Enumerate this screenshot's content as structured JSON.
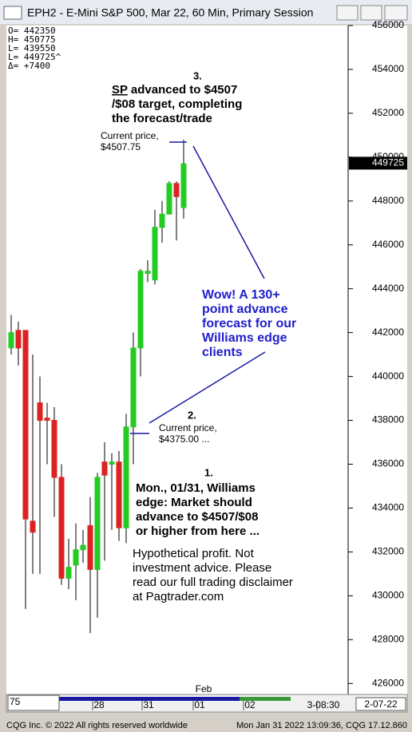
{
  "window": {
    "title": "EPH2 - E-Mini S&P 500, Mar 22, 60 Min, Primary Session",
    "footer_left": "CQG Inc. © 2022 All rights reserved worldwide",
    "footer_right": "Mon Jan 31 2022 13:09:36, CQG 17.12.860",
    "header_stats": [
      "O=  442350",
      "H=  450775",
      "L=  439550",
      "L=  449725^",
      "Δ=    +7400"
    ],
    "zoom": "75",
    "x_axis_labels": [
      "28",
      "31",
      "01",
      "02",
      "3-08:30"
    ],
    "month_label": "Feb",
    "date_box": "2-07-22"
  },
  "chart_data": {
    "type": "candlestick",
    "categories": [
      null,
      null,
      null,
      null,
      null,
      null,
      null,
      null,
      null,
      null,
      null,
      null,
      null,
      null,
      null,
      null,
      null,
      null,
      null,
      null,
      null,
      null,
      null,
      null,
      null
    ],
    "open": [
      441300,
      442100,
      442100,
      433400,
      438800,
      438100,
      438000,
      435400,
      430800,
      431400,
      432100,
      433200,
      431200,
      436100,
      436000,
      436100,
      433100,
      437700,
      441300,
      444700,
      444400,
      446800,
      447400,
      448800,
      447700
    ],
    "high": [
      442800,
      442500,
      442100,
      441000,
      440000,
      438800,
      438600,
      436000,
      432600,
      433300,
      433000,
      434500,
      435600,
      437000,
      436500,
      436600,
      438300,
      442000,
      444900,
      445300,
      447600,
      448000,
      448900,
      448900,
      450800
    ],
    "low": [
      441000,
      440500,
      429400,
      431000,
      431000,
      436000,
      433600,
      430500,
      430300,
      429800,
      431500,
      428300,
      429000,
      431600,
      433000,
      432500,
      432400,
      436000,
      440000,
      444300,
      444200,
      446100,
      447400,
      446200,
      447200
    ],
    "close": [
      442000,
      441300,
      433500,
      432900,
      438000,
      438000,
      435400,
      430800,
      431300,
      432100,
      432300,
      431200,
      435400,
      435500,
      436100,
      433100,
      437700,
      441300,
      444800,
      444800,
      446800,
      447400,
      448800,
      448200,
      449700
    ],
    "up_color": "#22cc22",
    "down_color": "#dd2222",
    "ylim": [
      425500,
      456000
    ],
    "yticks": [
      426000,
      428000,
      430000,
      432000,
      434000,
      436000,
      438000,
      440000,
      442000,
      444000,
      446000,
      448000,
      450000,
      452000,
      454000,
      456000
    ],
    "last_price": 449725,
    "annotations": {
      "a3": {
        "number": "3.",
        "underlined": "SP",
        "first": " advanced to $4507",
        "lines": [
          "/$08 target, completing",
          "the forecast/trade"
        ]
      },
      "cp1": [
        "Current price,",
        "$4507.75"
      ],
      "cp2": {
        "number": "2.",
        "lines": [
          "Current price,",
          "$4375.00 ..."
        ]
      },
      "wow": [
        "Wow! A 130+",
        "point advance",
        "forecast for our",
        "Williams edge",
        "clients"
      ],
      "a1": {
        "number": "1.",
        "lines": [
          "Mon., 01/31, Williams",
          "edge: Market should",
          "advance to $4507/$08",
          "or higher from here ..."
        ]
      },
      "disclaimer": [
        "Hypothetical profit. Not",
        "investment advice. Please",
        "read our full trading disclaimer",
        "at Pagtrader.com"
      ]
    }
  }
}
